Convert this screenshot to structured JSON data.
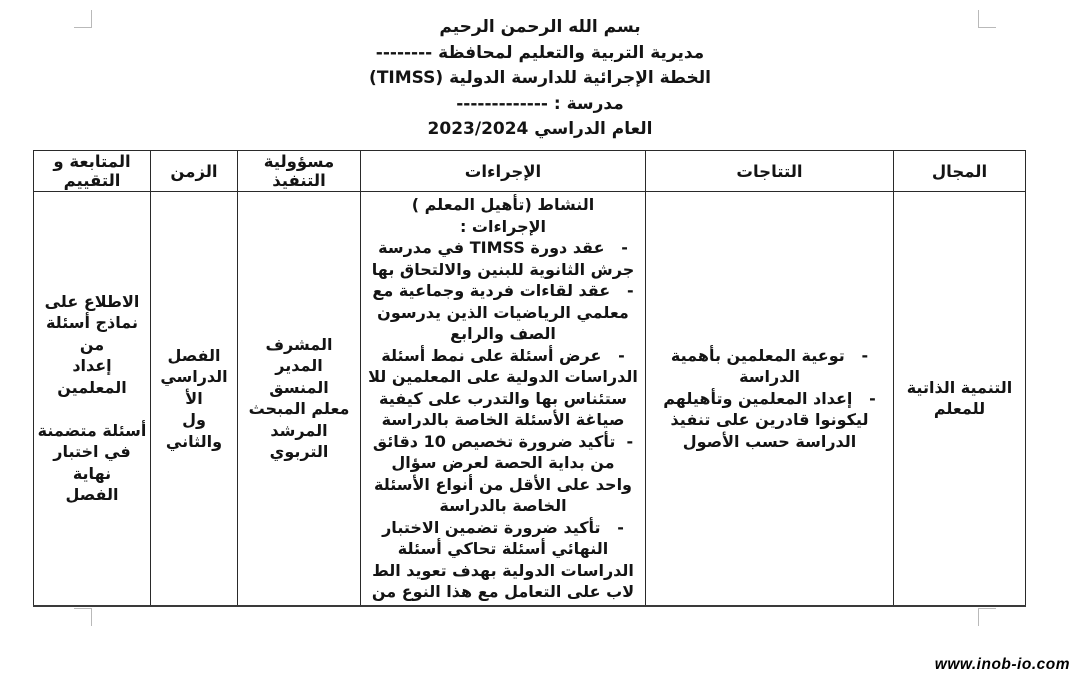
{
  "header": {
    "basmala": "بسم الله الرحمن الرحيم",
    "directorate": "مديرية التربية والتعليم لمحافظة --------",
    "plan_title": "الخطة الإجرائية للدارسة الدولية (TIMSS)",
    "school": "مدرسة : -------------",
    "academic_year": "العام الدراسي 2023/2024"
  },
  "table": {
    "headers": {
      "domain": "المجال",
      "outcomes": "التتاجات",
      "procedures": "الإجراءات",
      "responsibility": "مسؤولية التنفيذ",
      "time": "الزمن",
      "followup": "المتابعة و التقييم"
    },
    "row": {
      "domain": [
        "التنمية الذاتية",
        "للمعلم"
      ],
      "outcomes": [
        "-   توعية المعلمين بأهمية",
        "الدراسة",
        "-   إعداد المعلمين وتأهيلهم",
        "ليكونوا قادرين على تنفيذ",
        "الدراسة حسب الأصول"
      ],
      "procedures": [
        "النشاط (تأهيل المعلم )",
        "الإجراءات :",
        "-   عقد دورة TIMSS في مدرسة",
        "جرش الثانوية للبنين والالتحاق بها",
        "-   عقد لقاءات فردية وجماعية مع",
        "معلمي الرياضيات الذين يدرسون",
        "الصف والرابع",
        "-   عرض أسئلة على نمط أسئلة",
        "الدراسات الدولية على المعلمين للا",
        "ستئناس بها والتدرب على كيفية",
        "صياغة الأسئلة الخاصة بالدراسة",
        "-  تأكيد ضرورة تخصيص 10 دقائق",
        "من بداية الحصة لعرض سؤال",
        "واحد على الأقل من أنواع الأسئلة",
        "الخاصة بالدراسة",
        "-   تأكيد ضرورة تضمين الاختبار",
        "النهائي أسئلة تحاكي أسئلة",
        "الدراسات الدولية بهدف تعويد الط",
        "لاب على التعامل مع هذا النوع من"
      ],
      "responsibility": [
        "المشرف",
        "المدير",
        "المنسق",
        "معلم المبحث",
        "المرشد التربوي"
      ],
      "time": [
        "الفصل",
        "الدراسي الأ",
        "ول والثاني"
      ],
      "followup": [
        "الاطلاع على",
        "نماذج أسئلة من",
        "إعداد المعلمين",
        "",
        "أسئلة متضمنة",
        "في اختبار نهاية",
        "الفصل"
      ]
    }
  },
  "watermark": "www.inob-io.com"
}
